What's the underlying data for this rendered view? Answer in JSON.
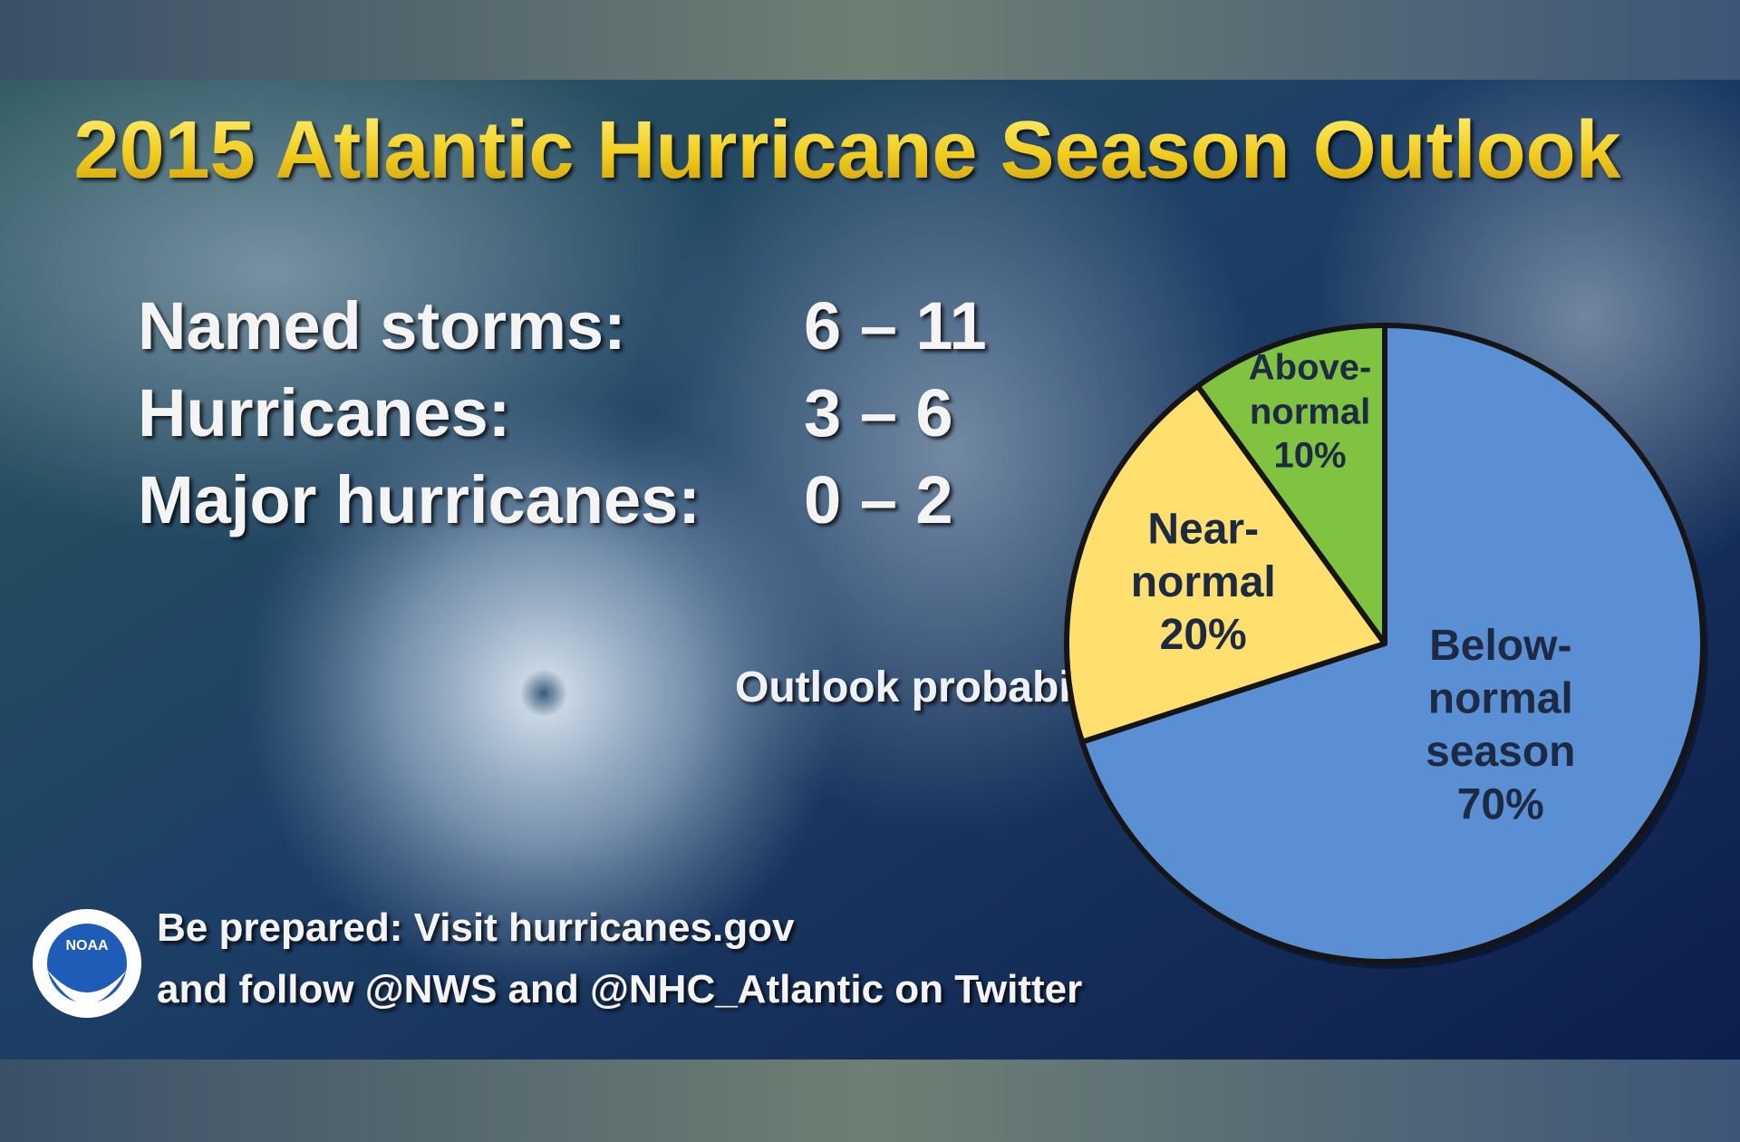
{
  "chart_data": {
    "type": "pie",
    "title": "2015 Atlantic Hurricane Season Outlook",
    "stats": [
      {
        "label": "Named storms:",
        "value": "6 – 11"
      },
      {
        "label": "Hurricanes:",
        "value": "3 – 6"
      },
      {
        "label": "Major hurricanes:",
        "value": "0 – 2"
      }
    ],
    "pie_label": "Outlook probability",
    "categories": [
      "Below-normal season",
      "Near-normal",
      "Above-normal"
    ],
    "values": [
      70,
      20,
      10
    ],
    "value_labels": [
      "70%",
      "20%",
      "10%"
    ],
    "colors": [
      "#5b8fd3",
      "#ffdf6e",
      "#80c341"
    ],
    "footer": [
      "Be prepared: Visit hurricanes.gov",
      "and follow @NWS and @NHC_Atlantic on Twitter"
    ],
    "logo_text": "NOAA"
  }
}
